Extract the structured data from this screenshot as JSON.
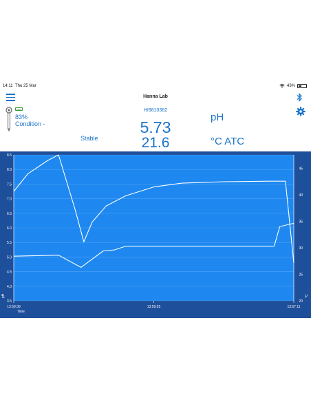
{
  "status_bar": {
    "time": "14:11",
    "date": "Thu 25 Mar",
    "battery": "43%",
    "battery_level": 0.43
  },
  "header": {
    "title": "Hanna Lab"
  },
  "probe": {
    "battery_percent": "83%",
    "condition": "Condition -",
    "model": "HI9810382"
  },
  "readings": {
    "primary_value": "5.73",
    "primary_unit": "pH",
    "secondary_value": "21.6",
    "secondary_unit": "°C ATC",
    "status": "Stable"
  },
  "colors": {
    "accent": "#1a73c9",
    "chart_bg": "#1e88f0",
    "chart_frame": "#1e4f9a",
    "battery_green": "#3c9a3c"
  },
  "icons": [
    "menu-icon",
    "bluetooth-icon",
    "gear-icon",
    "probe-icon",
    "battery-icon",
    "wifi-icon"
  ],
  "chart_data": {
    "type": "line",
    "x_ticks": [
      "13:59:39",
      "13:59:55",
      "13:57:11"
    ],
    "xlabel": "Time",
    "left_axis": {
      "label": "pH",
      "ticks": [
        "8.5",
        "8.0",
        "7.5",
        "7.0",
        "6.5",
        "6.0",
        "5.5",
        "5.0",
        "4.5",
        "4.0",
        "3.5"
      ],
      "ylim": [
        3.5,
        8.5
      ]
    },
    "right_axis": {
      "label": "°C",
      "ticks": [
        "45",
        "40",
        "35",
        "30",
        "25",
        "20"
      ],
      "ylim": [
        20,
        47.5
      ]
    },
    "series": [
      {
        "axis": "left",
        "values": [
          [
            0,
            7.25
          ],
          [
            5,
            7.85
          ],
          [
            12,
            8.3
          ],
          [
            16,
            8.5
          ],
          [
            22,
            6.6
          ],
          [
            25,
            5.52
          ],
          [
            28,
            6.2
          ],
          [
            33,
            6.75
          ],
          [
            40,
            7.1
          ],
          [
            50,
            7.4
          ],
          [
            60,
            7.53
          ],
          [
            75,
            7.58
          ],
          [
            92,
            7.6
          ],
          [
            97,
            7.6
          ],
          [
            100,
            4.8
          ]
        ]
      },
      {
        "axis": "right",
        "values": [
          [
            0,
            28.4
          ],
          [
            16,
            28.6
          ],
          [
            24,
            26.3
          ],
          [
            32,
            29.4
          ],
          [
            36,
            29.6
          ],
          [
            40,
            30.3
          ],
          [
            93,
            30.3
          ],
          [
            95,
            34.0
          ],
          [
            100,
            34.6
          ]
        ]
      }
    ]
  }
}
